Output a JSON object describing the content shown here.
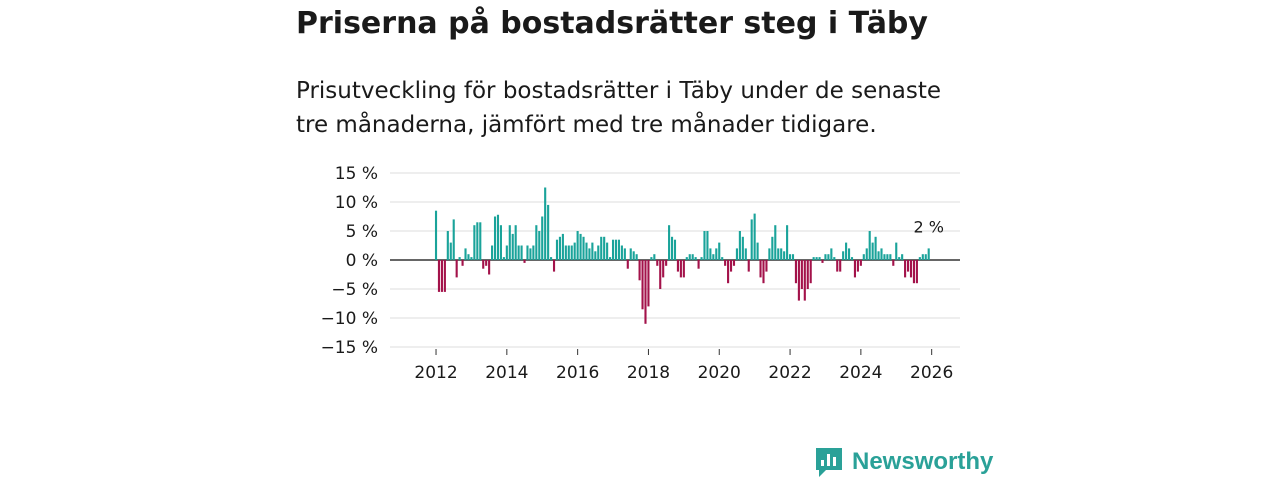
{
  "title": "Priserna på bostadsrätter steg i Täby",
  "subtitle": "Prisutveckling för bostadsrätter i Täby under de senaste tre månaderna, jämfört med tre månader tidigare.",
  "brand": {
    "name": "Newsworthy"
  },
  "colors": {
    "positive": "#1aa39a",
    "negative": "#a3124a",
    "grid": "#dddddd",
    "baseline": "#333333",
    "brand": "#2aa198"
  },
  "chart_data": {
    "type": "bar",
    "title": "Priserna på bostadsrätter steg i Täby",
    "xlabel": "",
    "ylabel": "",
    "x_start": 2012.0,
    "x_step": 0.08333,
    "xlim": [
      2010.7,
      2026.8
    ],
    "ylim": [
      -15,
      15
    ],
    "yticks": [
      15,
      10,
      5,
      0,
      -5,
      -10,
      -15
    ],
    "ytick_labels": [
      "15 %",
      "10 %",
      "5 %",
      "0 %",
      "−5 %",
      "−10 %",
      "−15 %"
    ],
    "xticks": [
      2012,
      2014,
      2016,
      2018,
      2020,
      2022,
      2024,
      2026
    ],
    "xtick_labels": [
      "2012",
      "2014",
      "2016",
      "2018",
      "2020",
      "2022",
      "2024",
      "2026"
    ],
    "end_label": "2 %",
    "values": [
      8.5,
      -5.5,
      -5.5,
      -5.5,
      5.0,
      3.0,
      7.0,
      -3.0,
      0.5,
      -1.0,
      2.0,
      1.0,
      0.5,
      6.0,
      6.5,
      6.5,
      -1.5,
      -1.0,
      -2.5,
      2.5,
      7.5,
      7.8,
      6.0,
      0.5,
      2.5,
      6.0,
      4.5,
      6.0,
      2.5,
      2.5,
      -0.5,
      2.5,
      2.0,
      2.5,
      6.0,
      5.0,
      7.5,
      12.5,
      9.5,
      0.5,
      -2.0,
      3.5,
      4.0,
      4.5,
      2.5,
      2.5,
      2.5,
      3.0,
      5.0,
      4.5,
      4.0,
      3.0,
      2.0,
      3.0,
      1.5,
      2.5,
      4.0,
      4.0,
      3.0,
      0.5,
      3.5,
      3.5,
      3.5,
      2.5,
      2.0,
      -1.5,
      2.0,
      1.5,
      1.0,
      -3.5,
      -8.5,
      -11.0,
      -8.0,
      0.5,
      1.0,
      -1.0,
      -5.0,
      -3.0,
      -1.0,
      6.0,
      4.0,
      3.5,
      -2.0,
      -3.0,
      -3.0,
      0.5,
      1.0,
      1.0,
      0.5,
      -1.5,
      0.5,
      5.0,
      5.0,
      2.0,
      1.0,
      2.0,
      3.0,
      0.5,
      -1.0,
      -4.0,
      -2.0,
      -1.0,
      2.0,
      5.0,
      4.0,
      2.0,
      -2.0,
      7.0,
      8.0,
      3.0,
      -3.0,
      -4.0,
      -2.0,
      2.0,
      4.0,
      6.0,
      2.0,
      2.0,
      1.5,
      6.0,
      1.0,
      1.0,
      -4.0,
      -7.0,
      -5.0,
      -7.0,
      -5.0,
      -4.0,
      0.5,
      0.5,
      0.5,
      -0.5,
      1.0,
      1.0,
      2.0,
      0.5,
      -2.0,
      -2.0,
      1.5,
      3.0,
      2.0,
      0.5,
      -3.0,
      -2.0,
      -1.0,
      1.0,
      2.0,
      5.0,
      3.0,
      4.0,
      1.5,
      2.0,
      1.0,
      1.0,
      1.0,
      -1.0,
      3.0,
      0.5,
      1.0,
      -3.0,
      -2.0,
      -3.0,
      -4.0,
      -4.0,
      0.5,
      1.0,
      1.0,
      2.0
    ]
  }
}
